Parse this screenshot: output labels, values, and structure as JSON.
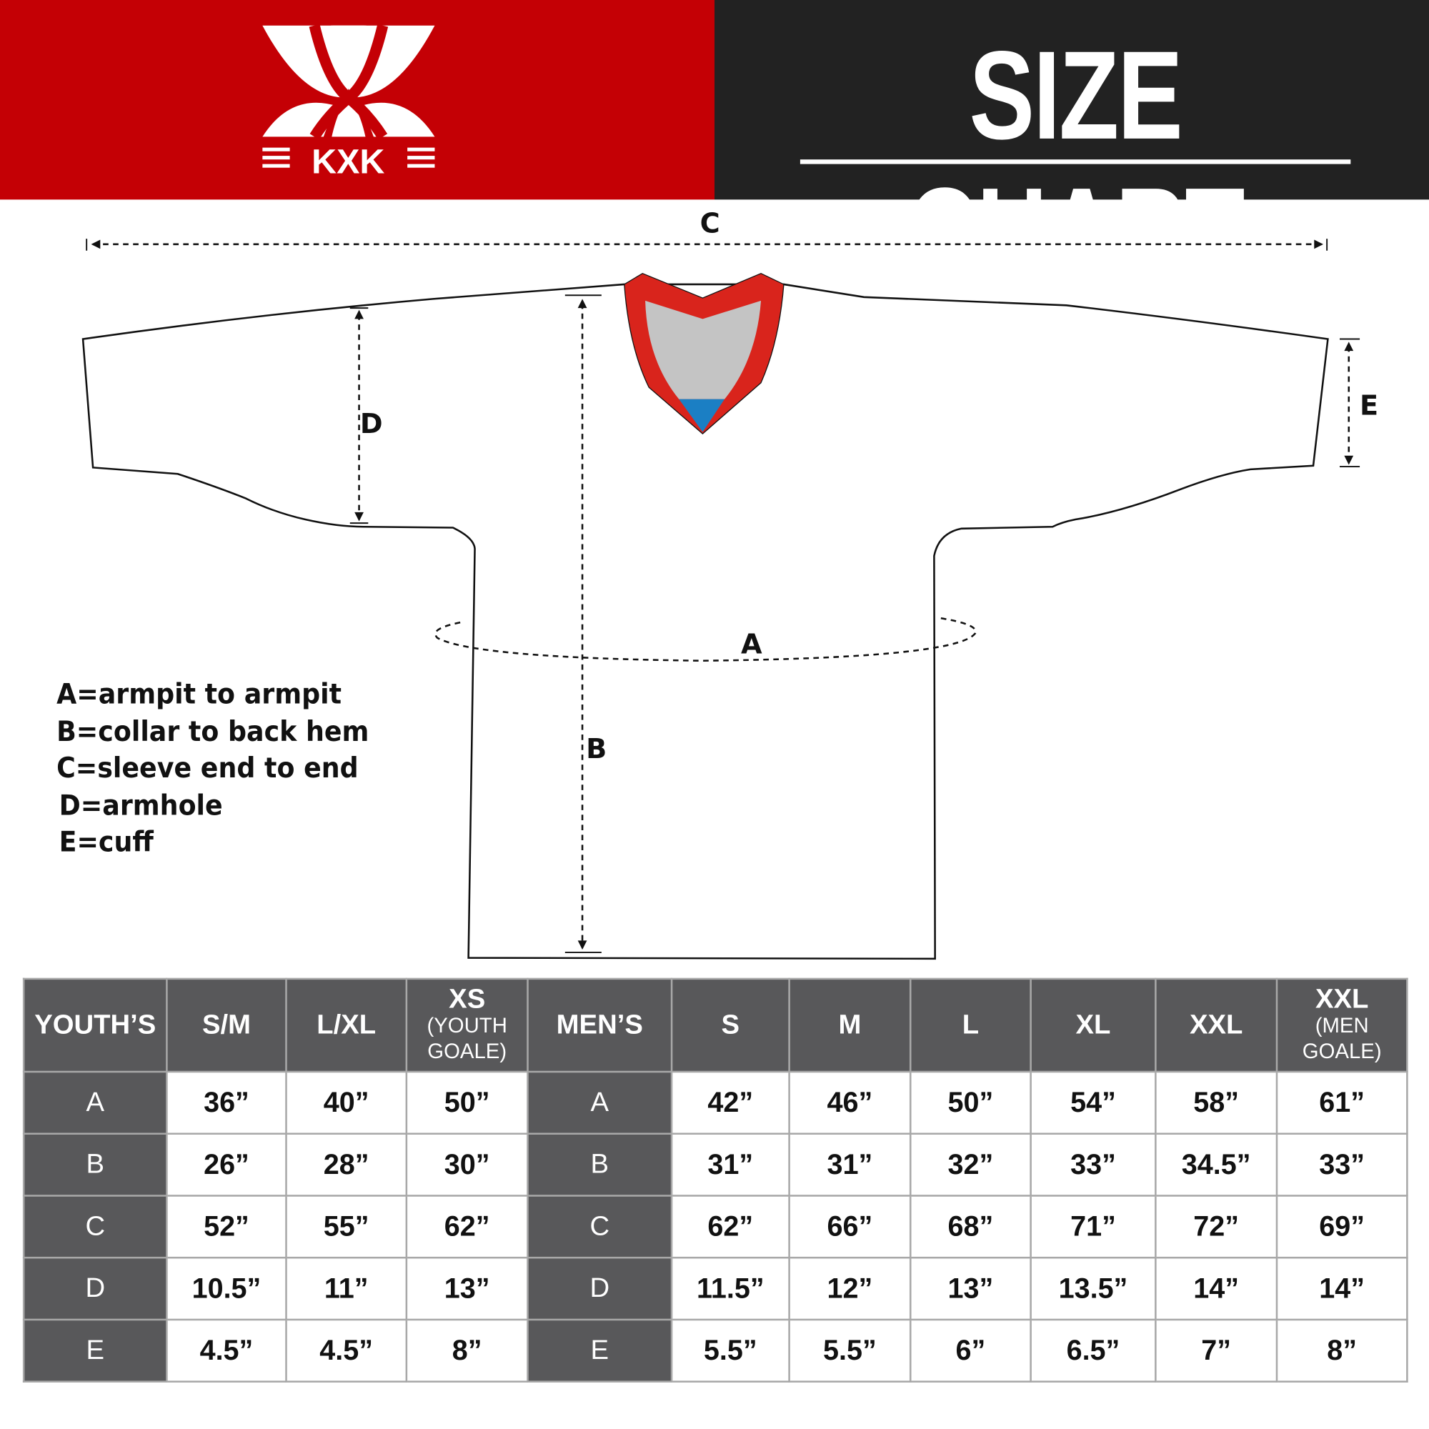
{
  "brand": {
    "name": "KXK",
    "red": "#c40005",
    "dark": "#222222"
  },
  "title": "SIZE CHART",
  "diagram": {
    "labels": {
      "A": "A",
      "B": "B",
      "C": "C",
      "D": "D",
      "E": "E"
    },
    "collar_colors": [
      "#d9241c",
      "#c4c4c4",
      "#1b7fc4"
    ]
  },
  "legend": [
    "A=armpit to armpit",
    "B=collar to back hem",
    "C=sleeve end to end",
    "D=armhole",
    "E=cuff"
  ],
  "table": {
    "headers": [
      {
        "main": "YOUTH’S"
      },
      {
        "main": "S/M"
      },
      {
        "main": "L/XL"
      },
      {
        "main": "XS",
        "sub": "(YOUTH GOALE)"
      },
      {
        "main": "MEN’S"
      },
      {
        "main": "S"
      },
      {
        "main": "M"
      },
      {
        "main": "L"
      },
      {
        "main": "XL"
      },
      {
        "main": "XXL"
      },
      {
        "main": "XXL",
        "sub": "(MEN GOALE)"
      }
    ],
    "rows": [
      [
        "A",
        "36”",
        "40”",
        "50”",
        "A",
        "42”",
        "46”",
        "50”",
        "54”",
        "58”",
        "61”"
      ],
      [
        "B",
        "26”",
        "28”",
        "30”",
        "B",
        "31”",
        "31”",
        "32”",
        "33”",
        "34.5”",
        "33”"
      ],
      [
        "C",
        "52”",
        "55”",
        "62”",
        "C",
        "62”",
        "66”",
        "68”",
        "71”",
        "72”",
        "69”"
      ],
      [
        "D",
        "10.5”",
        "11”",
        "13”",
        "D",
        "11.5”",
        "12”",
        "13”",
        "13.5”",
        "14”",
        "14”"
      ],
      [
        "E",
        "4.5”",
        "4.5”",
        "8”",
        "E",
        "5.5”",
        "5.5”",
        "6”",
        "6.5”",
        "7”",
        "8”"
      ]
    ]
  }
}
